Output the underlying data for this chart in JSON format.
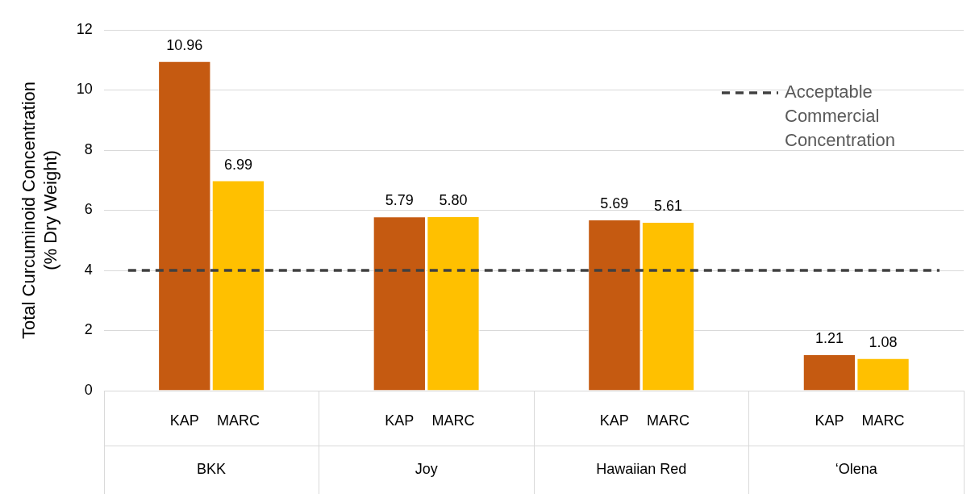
{
  "chart_data": {
    "type": "bar",
    "ylabel": "Total Curcuminoid Concentration (% Dry Weight)",
    "categories": [
      "BKK",
      "Joy",
      "Hawaiian Red",
      "‘Olena"
    ],
    "series": [
      {
        "name": "KAP",
        "color": "#c55a11",
        "values": [
          10.96,
          5.79,
          5.69,
          1.21
        ],
        "value_labels": [
          "10.96",
          "5.79",
          "5.69",
          "1.21"
        ]
      },
      {
        "name": "MARC",
        "color": "#ffc000",
        "values": [
          6.99,
          5.8,
          5.61,
          1.08
        ],
        "value_labels": [
          "6.99",
          "5.80",
          "5.61",
          "1.08"
        ]
      }
    ],
    "ylim": [
      0,
      12
    ],
    "yticks": [
      0,
      2,
      4,
      6,
      8,
      10,
      12
    ],
    "grid": "y",
    "legend": "top right",
    "ref_lines": [
      {
        "axis": "y",
        "value": 4,
        "label": "Acceptable Commercial Concentration",
        "color": "#404040",
        "line_style": "dashed"
      }
    ]
  }
}
